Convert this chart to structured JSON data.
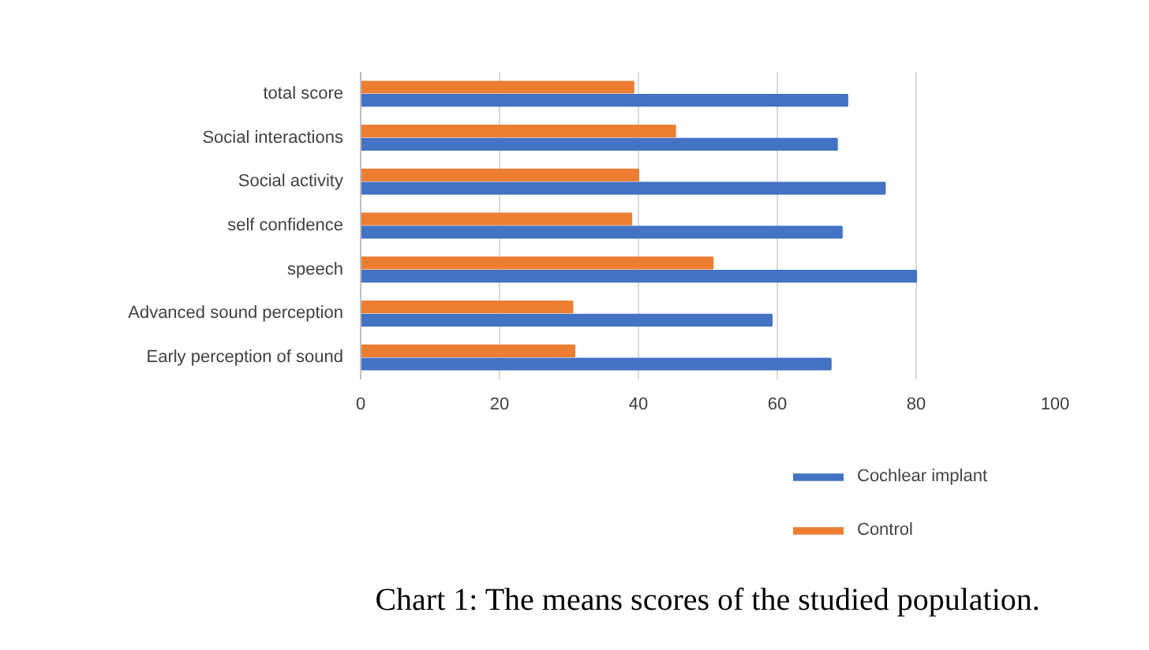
{
  "chart_data": {
    "type": "bar",
    "orientation": "horizontal",
    "title": "Chart 1: The means scores of the studied population.",
    "categories": [
      "total score",
      "Social interactions",
      "Social activity",
      "self confidence",
      "speech",
      "Advanced sound perception",
      "Early perception of sound"
    ],
    "series": [
      {
        "name": "Cochlear implant",
        "color": "#4472c4",
        "values": [
          70.1,
          68.6,
          75.5,
          69.3,
          80.0,
          59.2,
          67.7
        ]
      },
      {
        "name": "Control",
        "color": "#ed7d31",
        "values": [
          39.3,
          45.3,
          40.0,
          39.0,
          50.7,
          30.5,
          30.8
        ]
      }
    ],
    "xlim": [
      0,
      100
    ],
    "xticks": [
      0,
      20,
      40,
      60,
      80,
      100
    ],
    "grid": "x",
    "legend": "bottom right"
  }
}
